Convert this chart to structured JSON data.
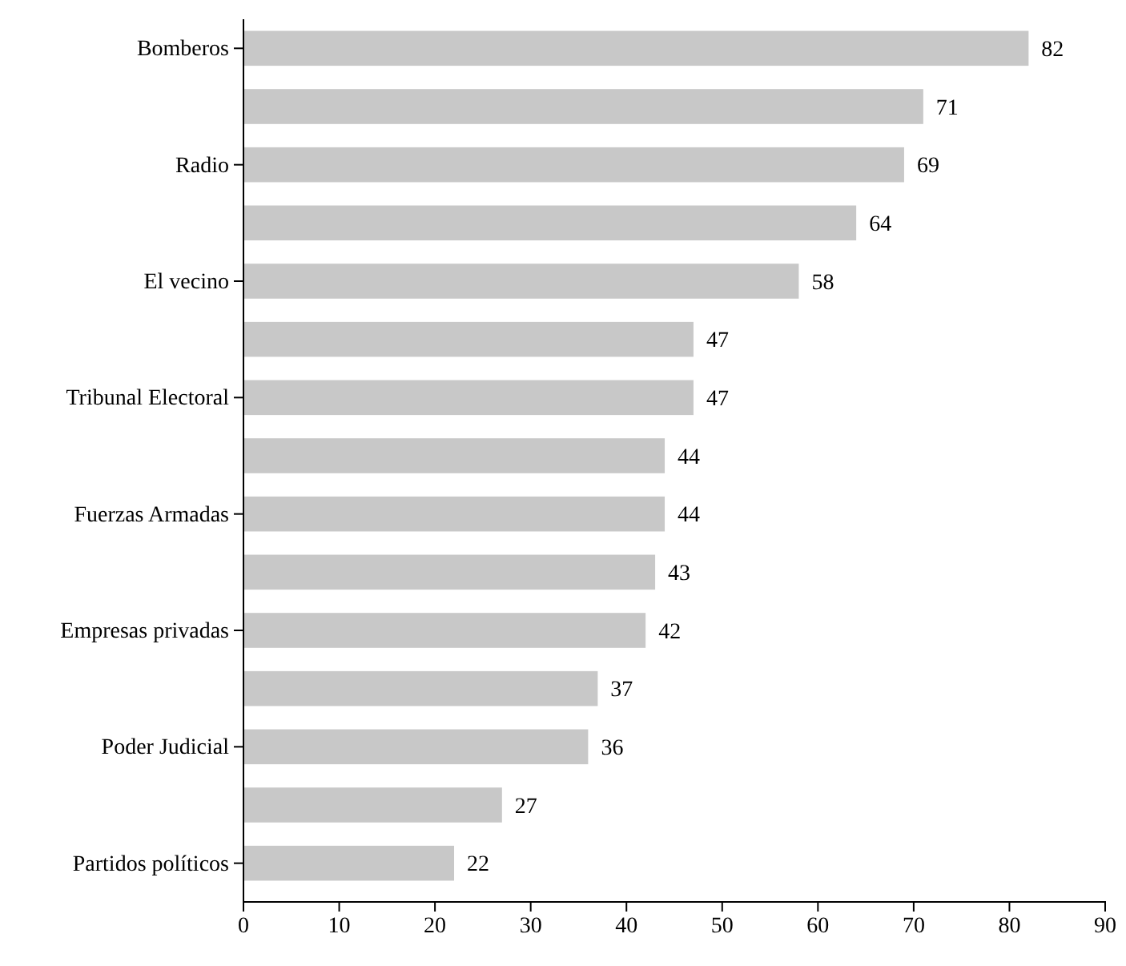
{
  "chart_data": {
    "type": "bar",
    "orientation": "horizontal",
    "categories": [
      "Bomberos",
      null,
      "Radio",
      null,
      "El vecino",
      null,
      "Tribunal Electoral",
      null,
      "Fuerzas Armadas",
      null,
      "Empresas privadas",
      null,
      "Poder Judicial",
      null,
      "Partidos políticos"
    ],
    "values": [
      82,
      71,
      69,
      64,
      58,
      47,
      47,
      44,
      44,
      43,
      42,
      37,
      36,
      27,
      22
    ],
    "color": "#c8c8c8",
    "data_labels": true,
    "xlim": [
      0,
      90
    ],
    "xticks": [
      0,
      10,
      20,
      30,
      40,
      50,
      60,
      70,
      80,
      90
    ]
  }
}
